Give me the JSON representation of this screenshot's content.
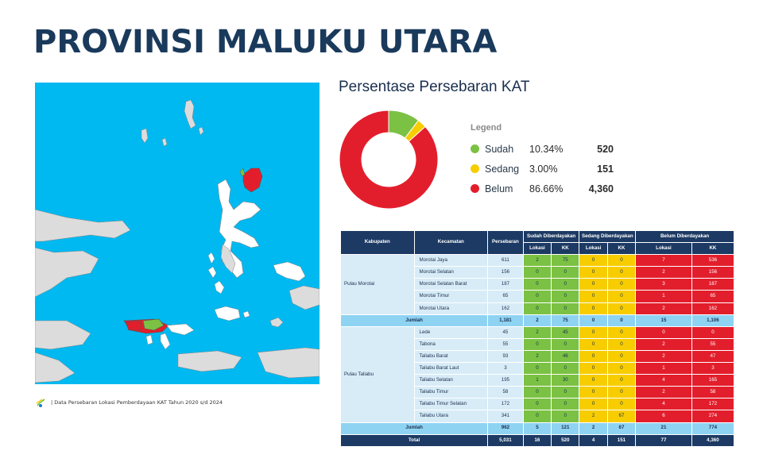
{
  "title": "PROVINSI MALUKU UTARA",
  "section_title": "Persentase Persebaran KAT",
  "legend": {
    "title": "Legend",
    "items": [
      {
        "label": "Sudah",
        "percent": "10.34%",
        "count": "520",
        "color": "#7bc143",
        "value": 10.34
      },
      {
        "label": "Sedang",
        "percent": "3.00%",
        "count": "151",
        "color": "#f7cd00",
        "value": 3.0
      },
      {
        "label": "Belum",
        "percent": "86.66%",
        "count": "4,360",
        "color": "#e31e2c",
        "value": 86.66
      }
    ]
  },
  "source_text": "| Data Persebaran Lokasi Pemberdayaan KAT Tahun 2020 s/d 2024",
  "table": {
    "headers": {
      "kabupaten": "Kabupaten",
      "kecamatan": "Kecamatan",
      "persebaran": "Persebaran",
      "sudah": "Sudah Diberdayakan",
      "sedang": "Sedang Diberdayakan",
      "belum": "Belum Diberdayakan",
      "lokasi": "Lokasi",
      "kk": "KK"
    },
    "groups": [
      {
        "kabupaten": "Pulau Morotai",
        "rows": [
          {
            "kec": "Morotai Jaya",
            "pers": "611",
            "sl": "2",
            "sk": "75",
            "dl": "0",
            "dk": "0",
            "bl": "7",
            "bk": "536"
          },
          {
            "kec": "Morotai Selatan",
            "pers": "156",
            "sl": "0",
            "sk": "0",
            "dl": "0",
            "dk": "0",
            "bl": "2",
            "bk": "156"
          },
          {
            "kec": "Morotai Selatan Barat",
            "pers": "187",
            "sl": "0",
            "sk": "0",
            "dl": "0",
            "dk": "0",
            "bl": "3",
            "bk": "187"
          },
          {
            "kec": "Morotai Timur",
            "pers": "65",
            "sl": "0",
            "sk": "0",
            "dl": "0",
            "dk": "0",
            "bl": "1",
            "bk": "65"
          },
          {
            "kec": "Morotai Utara",
            "pers": "162",
            "sl": "0",
            "sk": "0",
            "dl": "0",
            "dk": "0",
            "bl": "2",
            "bk": "162"
          }
        ],
        "jumlah": {
          "label": "Jumlah",
          "pers": "1,181",
          "sl": "2",
          "sk": "75",
          "dl": "0",
          "dk": "0",
          "bl": "15",
          "bk": "1,106"
        }
      },
      {
        "kabupaten": "Pulau Taliabu",
        "rows": [
          {
            "kec": "Lede",
            "pers": "45",
            "sl": "2",
            "sk": "45",
            "dl": "0",
            "dk": "0",
            "bl": "0",
            "bk": "0"
          },
          {
            "kec": "Tabona",
            "pers": "55",
            "sl": "0",
            "sk": "0",
            "dl": "0",
            "dk": "0",
            "bl": "2",
            "bk": "55"
          },
          {
            "kec": "Taliabu Barat",
            "pers": "93",
            "sl": "2",
            "sk": "46",
            "dl": "0",
            "dk": "0",
            "bl": "2",
            "bk": "47"
          },
          {
            "kec": "Taliabu Barat Laut",
            "pers": "3",
            "sl": "0",
            "sk": "0",
            "dl": "0",
            "dk": "0",
            "bl": "1",
            "bk": "3"
          },
          {
            "kec": "Taliabu Selatan",
            "pers": "195",
            "sl": "1",
            "sk": "30",
            "dl": "0",
            "dk": "0",
            "bl": "4",
            "bk": "165"
          },
          {
            "kec": "Taliabu Timur",
            "pers": "58",
            "sl": "0",
            "sk": "0",
            "dl": "0",
            "dk": "0",
            "bl": "2",
            "bk": "58"
          },
          {
            "kec": "Taliabu Timur Selatan",
            "pers": "172",
            "sl": "0",
            "sk": "0",
            "dl": "0",
            "dk": "0",
            "bl": "4",
            "bk": "172"
          },
          {
            "kec": "Taliabu Utara",
            "pers": "341",
            "sl": "0",
            "sk": "0",
            "dl": "2",
            "dk": "67",
            "bl": "6",
            "bk": "274"
          }
        ],
        "jumlah": {
          "label": "Jumlah",
          "pers": "962",
          "sl": "5",
          "sk": "121",
          "dl": "2",
          "dk": "67",
          "bl": "21",
          "bk": "774"
        }
      }
    ],
    "total": {
      "label": "Total",
      "pers": "5,031",
      "sl": "16",
      "sk": "520",
      "dl": "4",
      "dk": "151",
      "bl": "77",
      "bk": "4,360"
    }
  },
  "chart_data": {
    "type": "pie",
    "categories": [
      "Sudah",
      "Sedang",
      "Belum"
    ],
    "values": [
      10.34,
      3.0,
      86.66
    ],
    "counts": [
      520,
      151,
      4360
    ],
    "title": "Persentase Persebaran KAT"
  }
}
